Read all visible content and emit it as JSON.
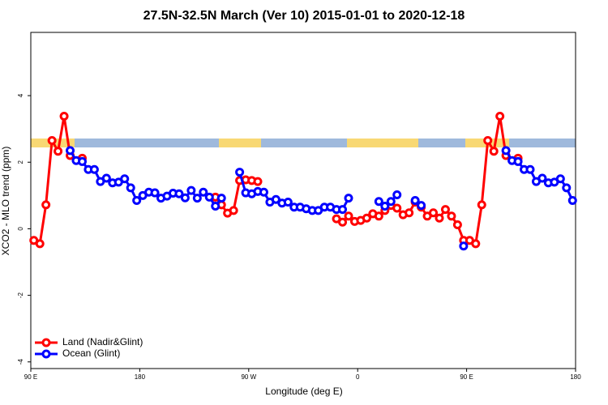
{
  "chart_data": {
    "type": "line",
    "title": "27.5N-32.5N March (Ver 10)   2015-01-01 to 2020-12-18",
    "x_label": "Longitude (deg E)",
    "y_label": "XCO2 - MLO trend (ppm)",
    "x": [
      92.5,
      97.5,
      102.5,
      107.5,
      112.5,
      117.5,
      122.5,
      127.5,
      132.5,
      137.5,
      142.5,
      147.5,
      152.5,
      157.5,
      162.5,
      167.5,
      172.5,
      177.5,
      182.5,
      187.5,
      192.5,
      197.5,
      202.5,
      207.5,
      212.5,
      217.5,
      222.5,
      227.5,
      232.5,
      237.5,
      242.5,
      247.5,
      252.5,
      257.5,
      262.5,
      267.5,
      272.5,
      277.5,
      282.5,
      287.5,
      292.5,
      297.5,
      302.5,
      307.5,
      312.5,
      317.5,
      322.5,
      327.5,
      332.5,
      337.5,
      342.5,
      347.5,
      352.5,
      357.5,
      362.5,
      367.5,
      372.5,
      377.5,
      382.5,
      387.5,
      392.5,
      397.5,
      402.5,
      407.5,
      412.5,
      417.5,
      422.5,
      427.5,
      432.5,
      437.5,
      442.5,
      447.5,
      452.5,
      457.5,
      462.5,
      467.5,
      472.5,
      477.5,
      482.5,
      487.5,
      492.5,
      497.5,
      502.5,
      507.5,
      512.5,
      517.5,
      522.5,
      527.5,
      532.5,
      537.5
    ],
    "series": [
      {
        "name": "Land (Nadir&Glint)",
        "color": "#ff0000",
        "values": [
          -0.35,
          -0.45,
          0.72,
          2.65,
          2.33,
          3.38,
          2.2,
          null,
          2.12,
          null,
          null,
          null,
          null,
          null,
          null,
          null,
          null,
          null,
          null,
          null,
          null,
          null,
          null,
          null,
          null,
          null,
          null,
          null,
          null,
          null,
          0.95,
          0.72,
          0.47,
          0.55,
          1.45,
          1.47,
          1.45,
          1.42,
          null,
          null,
          null,
          null,
          null,
          null,
          null,
          null,
          null,
          null,
          null,
          null,
          0.3,
          0.2,
          0.38,
          0.22,
          0.25,
          0.32,
          0.45,
          0.38,
          0.55,
          0.7,
          0.62,
          0.42,
          0.48,
          0.8,
          0.65,
          0.38,
          0.48,
          0.32,
          0.58,
          0.38,
          0.12,
          -0.35,
          -0.35,
          -0.45,
          0.72,
          2.65,
          2.33,
          3.38,
          2.2,
          null,
          2.12,
          null,
          null,
          null,
          null,
          null,
          null,
          null,
          null,
          null
        ]
      },
      {
        "name": "Ocean (Glint)",
        "color": "#0000ff",
        "values": [
          null,
          null,
          null,
          null,
          null,
          null,
          2.35,
          2.05,
          2.02,
          1.78,
          1.78,
          1.42,
          1.52,
          1.38,
          1.4,
          1.5,
          1.23,
          0.85,
          1.0,
          1.1,
          1.08,
          0.92,
          0.98,
          1.07,
          1.05,
          0.93,
          1.15,
          0.92,
          1.1,
          0.95,
          0.68,
          0.92,
          null,
          null,
          1.7,
          1.08,
          1.05,
          1.12,
          1.1,
          0.8,
          0.88,
          0.77,
          0.8,
          0.65,
          0.65,
          0.6,
          0.55,
          0.55,
          0.65,
          0.65,
          0.58,
          0.58,
          0.92,
          null,
          null,
          null,
          null,
          0.82,
          0.68,
          0.82,
          1.02,
          null,
          null,
          0.85,
          0.7,
          null,
          null,
          null,
          null,
          null,
          null,
          -0.52,
          null,
          null,
          null,
          null,
          null,
          null,
          2.35,
          2.05,
          2.02,
          1.78,
          1.78,
          1.42,
          1.52,
          1.38,
          1.4,
          1.5,
          1.23,
          0.85
        ]
      }
    ],
    "xlim": [
      90,
      540
    ],
    "xticks": [
      {
        "value": 90,
        "label": "90 E"
      },
      180,
      {
        "value": 270,
        "label": "90 W"
      },
      {
        "value": 360,
        "label": "0"
      },
      {
        "value": 450,
        "label": "90 E"
      },
      {
        "value": 540,
        "label": "180"
      }
    ],
    "ylim": [
      -4.2,
      5.9
    ],
    "yticks": [
      -4,
      -2,
      0,
      2,
      4
    ],
    "legend": "bottom-left"
  }
}
